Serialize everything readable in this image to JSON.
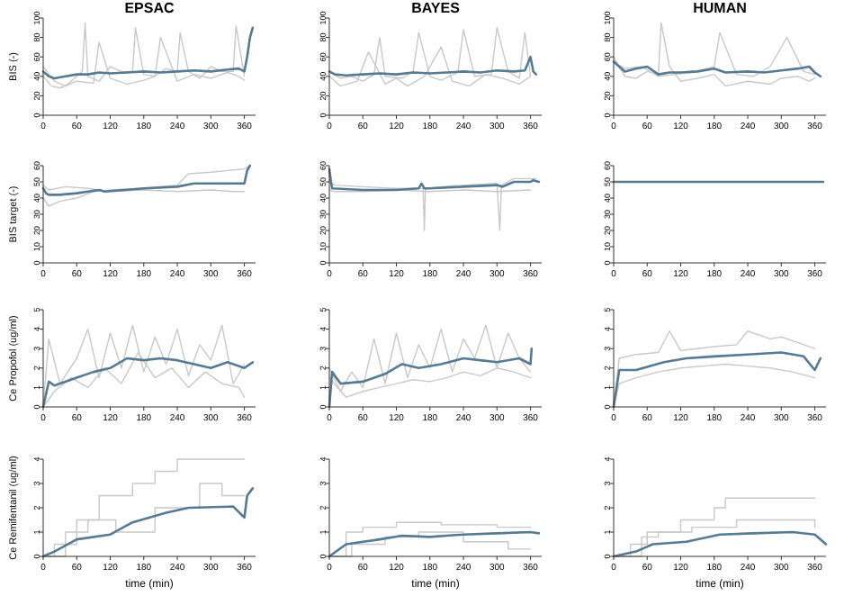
{
  "chart_data": [
    {
      "type": "line",
      "title": "EPSAC",
      "ylabel": "BIS (-)",
      "xlim": [
        0,
        380
      ],
      "ylim": [
        0,
        100
      ],
      "xticks": [
        0,
        60,
        120,
        180,
        240,
        300,
        360
      ],
      "yticks": [
        0,
        20,
        40,
        60,
        80,
        100
      ],
      "series": [
        {
          "color": "#c8c8c8",
          "x": [
            0,
            20,
            40,
            60,
            70,
            75,
            80,
            100,
            120,
            140,
            160,
            165,
            180,
            200,
            220,
            240,
            245,
            260,
            280,
            300,
            320,
            340,
            345,
            360
          ],
          "values": [
            50,
            35,
            30,
            40,
            45,
            95,
            40,
            35,
            50,
            45,
            45,
            90,
            42,
            40,
            48,
            45,
            85,
            45,
            38,
            50,
            45,
            45,
            92,
            40
          ]
        },
        {
          "color": "#c8c8c8",
          "x": [
            0,
            15,
            30,
            60,
            90,
            100,
            120,
            150,
            180,
            200,
            210,
            240,
            270,
            300,
            330,
            350,
            360
          ],
          "values": [
            40,
            30,
            28,
            35,
            33,
            75,
            38,
            32,
            36,
            40,
            80,
            35,
            42,
            38,
            44,
            40,
            36
          ]
        },
        {
          "color": "#557a93",
          "x": [
            0,
            10,
            20,
            40,
            60,
            80,
            100,
            120,
            150,
            180,
            210,
            240,
            270,
            300,
            330,
            350,
            360,
            365,
            370,
            375
          ],
          "values": [
            45,
            40,
            38,
            40,
            42,
            42,
            44,
            43,
            44,
            45,
            44,
            45,
            46,
            45,
            47,
            48,
            45,
            60,
            80,
            90
          ]
        }
      ]
    },
    {
      "type": "line",
      "title": "BAYES",
      "ylim": [
        0,
        100
      ],
      "xlim": [
        0,
        380
      ],
      "xticks": [
        0,
        60,
        120,
        180,
        240,
        300,
        360
      ],
      "yticks": [
        0,
        20,
        40,
        60,
        80,
        100
      ],
      "series": [
        {
          "color": "#c8c8c8",
          "x": [
            0,
            20,
            40,
            60,
            80,
            90,
            100,
            130,
            150,
            160,
            180,
            200,
            230,
            240,
            260,
            290,
            300,
            320,
            340,
            350,
            360
          ],
          "values": [
            45,
            38,
            40,
            35,
            42,
            80,
            40,
            38,
            45,
            85,
            40,
            36,
            44,
            88,
            40,
            42,
            90,
            45,
            38,
            85,
            40
          ]
        },
        {
          "color": "#c8c8c8",
          "x": [
            0,
            20,
            50,
            70,
            100,
            120,
            140,
            170,
            200,
            220,
            250,
            280,
            310,
            340,
            360
          ],
          "values": [
            40,
            30,
            35,
            65,
            32,
            38,
            30,
            40,
            70,
            35,
            30,
            42,
            38,
            32,
            40
          ]
        },
        {
          "color": "#557a93",
          "x": [
            0,
            10,
            30,
            60,
            90,
            120,
            150,
            180,
            210,
            240,
            270,
            300,
            330,
            350,
            360,
            365,
            370
          ],
          "values": [
            45,
            42,
            41,
            42,
            43,
            42,
            44,
            43,
            44,
            45,
            44,
            46,
            45,
            46,
            60,
            45,
            42
          ]
        }
      ]
    },
    {
      "type": "line",
      "title": "HUMAN",
      "ylim": [
        0,
        100
      ],
      "xlim": [
        0,
        380
      ],
      "xticks": [
        0,
        60,
        120,
        180,
        240,
        300,
        360
      ],
      "yticks": [
        0,
        20,
        40,
        60,
        80,
        100
      ],
      "series": [
        {
          "color": "#c8c8c8",
          "x": [
            0,
            20,
            40,
            60,
            80,
            85,
            100,
            120,
            150,
            180,
            200,
            240,
            280,
            300,
            330,
            350,
            360
          ],
          "values": [
            60,
            40,
            38,
            45,
            42,
            95,
            50,
            35,
            38,
            42,
            30,
            35,
            32,
            38,
            40,
            35,
            38
          ]
        },
        {
          "color": "#c8c8c8",
          "x": [
            0,
            20,
            50,
            80,
            110,
            140,
            180,
            190,
            220,
            250,
            280,
            310,
            340,
            360
          ],
          "values": [
            55,
            48,
            50,
            40,
            42,
            44,
            50,
            85,
            42,
            40,
            50,
            80,
            45,
            42
          ]
        },
        {
          "color": "#557a93",
          "x": [
            0,
            10,
            20,
            40,
            60,
            80,
            100,
            120,
            150,
            180,
            200,
            240,
            270,
            300,
            330,
            350,
            360,
            370
          ],
          "values": [
            55,
            50,
            45,
            48,
            50,
            42,
            44,
            44,
            45,
            48,
            44,
            45,
            44,
            46,
            48,
            50,
            44,
            40
          ]
        }
      ]
    },
    {
      "type": "line",
      "ylabel": "BIS target (-)",
      "ylim": [
        0,
        60
      ],
      "xlim": [
        0,
        380
      ],
      "xticks": [
        0,
        60,
        120,
        180,
        240,
        300,
        360
      ],
      "yticks": [
        0,
        10,
        20,
        30,
        40,
        50,
        60
      ],
      "series": [
        {
          "color": "#c8c8c8",
          "x": [
            0,
            10,
            30,
            60,
            90,
            120,
            180,
            240,
            260,
            300,
            360,
            370
          ],
          "values": [
            40,
            35,
            38,
            40,
            44,
            45,
            46,
            48,
            55,
            56,
            58,
            60
          ]
        },
        {
          "color": "#c8c8c8",
          "x": [
            0,
            10,
            40,
            80,
            120,
            180,
            240,
            300,
            340,
            360
          ],
          "values": [
            48,
            45,
            47,
            46,
            44,
            45,
            44,
            45,
            44,
            44
          ]
        },
        {
          "color": "#557a93",
          "x": [
            0,
            5,
            10,
            30,
            60,
            100,
            110,
            180,
            240,
            270,
            300,
            360,
            365,
            370
          ],
          "values": [
            46,
            43,
            42,
            42,
            43,
            45,
            44,
            46,
            47,
            49,
            49,
            49,
            57,
            60
          ]
        }
      ]
    },
    {
      "type": "line",
      "ylim": [
        0,
        60
      ],
      "xlim": [
        0,
        380
      ],
      "xticks": [
        0,
        60,
        120,
        180,
        240,
        300,
        360
      ],
      "yticks": [
        0,
        10,
        20,
        30,
        40,
        50,
        60
      ],
      "series": [
        {
          "color": "#c8c8c8",
          "x": [
            0,
            10,
            60,
            120,
            168,
            170,
            172,
            200,
            240,
            300,
            305,
            308,
            330,
            370
          ],
          "values": [
            50,
            48,
            47,
            46,
            46,
            20,
            46,
            47,
            48,
            49,
            20,
            48,
            52,
            52
          ]
        },
        {
          "color": "#c8c8c8",
          "x": [
            0,
            10,
            60,
            120,
            180,
            240,
            300,
            360
          ],
          "values": [
            45,
            44,
            44,
            45,
            44,
            45,
            44,
            45
          ]
        },
        {
          "color": "#557a93",
          "x": [
            0,
            3,
            5,
            60,
            120,
            160,
            165,
            170,
            180,
            240,
            300,
            310,
            330,
            360,
            365,
            375
          ],
          "values": [
            58,
            50,
            46,
            45,
            45,
            46,
            49,
            46,
            46,
            47,
            48,
            47,
            50,
            50,
            51,
            50
          ]
        }
      ]
    },
    {
      "type": "line",
      "ylim": [
        0,
        60
      ],
      "xlim": [
        0,
        380
      ],
      "xticks": [
        0,
        60,
        120,
        180,
        240,
        300,
        360
      ],
      "yticks": [
        0,
        10,
        20,
        30,
        40,
        50,
        60
      ],
      "series": [
        {
          "color": "#557a93",
          "x": [
            0,
            375
          ],
          "values": [
            50,
            50
          ]
        }
      ]
    },
    {
      "type": "line",
      "ylabel": "Ce Propofol (ug/ml)",
      "ylim": [
        0,
        5
      ],
      "xlim": [
        0,
        380
      ],
      "xticks": [
        0,
        60,
        120,
        180,
        240,
        300,
        360
      ],
      "yticks": [
        0,
        1,
        2,
        3,
        4,
        5
      ],
      "series": [
        {
          "color": "#c8c8c8",
          "x": [
            0,
            10,
            30,
            60,
            80,
            100,
            120,
            140,
            160,
            180,
            200,
            220,
            240,
            260,
            280,
            300,
            320,
            340,
            360
          ],
          "values": [
            0,
            3.5,
            1.2,
            2.5,
            4,
            1.5,
            3.8,
            2,
            4.2,
            1.8,
            3.6,
            2.2,
            4,
            1.6,
            3.2,
            2.4,
            4.2,
            1.2,
            2.2
          ]
        },
        {
          "color": "#c8c8c8",
          "x": [
            0,
            20,
            50,
            80,
            110,
            140,
            170,
            200,
            230,
            260,
            290,
            320,
            350,
            360
          ],
          "values": [
            0,
            0.8,
            1.5,
            1,
            2,
            1.2,
            2.8,
            1.5,
            2,
            1,
            1.8,
            1.2,
            1,
            0.5
          ]
        },
        {
          "color": "#557a93",
          "x": [
            0,
            10,
            20,
            60,
            90,
            120,
            150,
            180,
            210,
            240,
            270,
            300,
            330,
            360,
            375
          ],
          "values": [
            0,
            1.3,
            1.1,
            1.5,
            1.8,
            2,
            2.5,
            2.4,
            2.5,
            2.4,
            2.2,
            2,
            2.3,
            2,
            2.3
          ]
        }
      ]
    },
    {
      "type": "line",
      "ylim": [
        0,
        5
      ],
      "xlim": [
        0,
        380
      ],
      "xticks": [
        0,
        60,
        120,
        180,
        240,
        300,
        360
      ],
      "yticks": [
        0,
        1,
        2,
        3,
        4,
        5
      ],
      "series": [
        {
          "color": "#c8c8c8",
          "x": [
            0,
            20,
            40,
            60,
            80,
            100,
            120,
            140,
            160,
            180,
            200,
            220,
            240,
            260,
            280,
            300,
            320,
            340,
            360
          ],
          "values": [
            2,
            0.8,
            1.8,
            1,
            3.5,
            1.2,
            3.8,
            1.5,
            3.2,
            2,
            4,
            1.8,
            3.5,
            2.5,
            4.2,
            2,
            3.8,
            2.5,
            1.8
          ]
        },
        {
          "color": "#c8c8c8",
          "x": [
            0,
            30,
            60,
            90,
            120,
            150,
            180,
            210,
            240,
            270,
            300,
            330,
            360
          ],
          "values": [
            1.5,
            0.5,
            0.8,
            1,
            1.2,
            1.4,
            1.3,
            1.5,
            1.8,
            1.6,
            2,
            1.8,
            1.5
          ]
        },
        {
          "color": "#557a93",
          "x": [
            0,
            5,
            20,
            60,
            100,
            130,
            160,
            200,
            240,
            270,
            300,
            340,
            360,
            362
          ],
          "values": [
            0,
            1.8,
            1.2,
            1.3,
            1.7,
            2.2,
            2,
            2.2,
            2.5,
            2.4,
            2.3,
            2.5,
            2.2,
            3
          ]
        }
      ]
    },
    {
      "type": "line",
      "ylim": [
        0,
        5
      ],
      "xlim": [
        0,
        380
      ],
      "xticks": [
        0,
        60,
        120,
        180,
        240,
        300,
        360
      ],
      "yticks": [
        0,
        1,
        2,
        3,
        4,
        5
      ],
      "series": [
        {
          "color": "#c8c8c8",
          "x": [
            0,
            10,
            40,
            80,
            100,
            120,
            150,
            180,
            220,
            240,
            280,
            300,
            340,
            360
          ],
          "values": [
            0,
            2.5,
            2.7,
            2.8,
            3.9,
            2.9,
            3,
            3.1,
            3.2,
            3.9,
            3.5,
            3.6,
            3.2,
            3
          ]
        },
        {
          "color": "#c8c8c8",
          "x": [
            0,
            10,
            40,
            80,
            120,
            160,
            200,
            240,
            280,
            320,
            360
          ],
          "values": [
            0,
            1.2,
            1.5,
            1.8,
            2,
            2.1,
            2.2,
            2.1,
            2,
            1.8,
            1.5
          ]
        },
        {
          "color": "#557a93",
          "x": [
            0,
            10,
            40,
            90,
            130,
            180,
            240,
            300,
            340,
            360,
            370
          ],
          "values": [
            0,
            1.9,
            1.9,
            2.3,
            2.5,
            2.6,
            2.7,
            2.8,
            2.6,
            1.9,
            2.5
          ]
        }
      ]
    },
    {
      "type": "line",
      "xlabel": "time (min)",
      "ylabel": "Ce Remifentanil (ug/ml)",
      "ylim": [
        0,
        4
      ],
      "xlim": [
        0,
        380
      ],
      "xticks": [
        0,
        60,
        120,
        180,
        240,
        300,
        360
      ],
      "yticks": [
        0,
        1,
        2,
        3,
        4
      ],
      "series": [
        {
          "type": "step",
          "color": "#c8c8c8",
          "x": [
            0,
            20,
            60,
            100,
            160,
            200,
            240,
            360
          ],
          "values": [
            0,
            0.5,
            1.5,
            2.5,
            3,
            3.5,
            4,
            4
          ]
        },
        {
          "type": "step",
          "color": "#c8c8c8",
          "x": [
            0,
            40,
            80,
            130,
            200,
            280,
            320,
            360
          ],
          "values": [
            0,
            1,
            1.5,
            1,
            2,
            3,
            2.5,
            2.5
          ]
        },
        {
          "color": "#557a93",
          "x": [
            0,
            20,
            60,
            120,
            160,
            220,
            260,
            340,
            360,
            365,
            375
          ],
          "values": [
            0,
            0.2,
            0.7,
            0.9,
            1.4,
            1.8,
            2,
            2.05,
            1.6,
            2.5,
            2.8
          ]
        }
      ]
    },
    {
      "type": "line",
      "xlabel": "time (min)",
      "ylim": [
        0,
        4
      ],
      "xlim": [
        0,
        380
      ],
      "xticks": [
        0,
        60,
        120,
        180,
        240,
        300,
        360
      ],
      "yticks": [
        0,
        1,
        2,
        3,
        4
      ],
      "series": [
        {
          "type": "step",
          "color": "#c8c8c8",
          "x": [
            0,
            30,
            60,
            120,
            200,
            300,
            360
          ],
          "values": [
            0,
            1,
            1.2,
            1.4,
            1.3,
            1.2,
            1.2
          ]
        },
        {
          "type": "step",
          "color": "#c8c8c8",
          "x": [
            0,
            40,
            100,
            160,
            240,
            320,
            360
          ],
          "values": [
            0,
            0.5,
            0.8,
            1,
            0.6,
            0.3,
            0.3
          ]
        },
        {
          "color": "#557a93",
          "x": [
            0,
            30,
            90,
            130,
            180,
            240,
            300,
            360,
            375
          ],
          "values": [
            0,
            0.5,
            0.7,
            0.85,
            0.8,
            0.9,
            0.95,
            1,
            0.95
          ]
        }
      ]
    },
    {
      "type": "line",
      "xlabel": "time (min)",
      "ylim": [
        0,
        4
      ],
      "xlim": [
        0,
        380
      ],
      "xticks": [
        0,
        60,
        120,
        180,
        240,
        300,
        360
      ],
      "yticks": [
        0,
        1,
        2,
        3,
        4
      ],
      "series": [
        {
          "type": "step",
          "color": "#c8c8c8",
          "x": [
            0,
            30,
            60,
            120,
            180,
            200,
            360
          ],
          "values": [
            0,
            0.5,
            1,
            1.5,
            2,
            2.4,
            2.4
          ]
        },
        {
          "type": "step",
          "color": "#c8c8c8",
          "x": [
            0,
            50,
            80,
            140,
            220,
            300,
            360
          ],
          "values": [
            0,
            0.8,
            1,
            1.2,
            1.5,
            1.5,
            1.2
          ]
        },
        {
          "color": "#557a93",
          "x": [
            0,
            40,
            70,
            130,
            190,
            250,
            320,
            360,
            380
          ],
          "values": [
            0,
            0.2,
            0.5,
            0.6,
            0.9,
            0.95,
            1,
            0.9,
            0.5
          ]
        }
      ]
    }
  ]
}
